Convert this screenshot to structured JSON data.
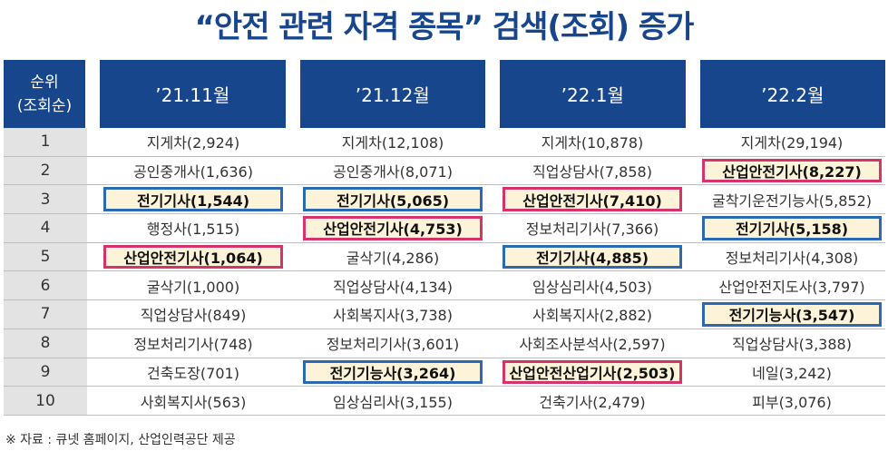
{
  "title": "“안전 관련 자격 종목” 검색(조회) 증가",
  "header": {
    "rank_line1": "순위",
    "rank_line2": "(조회순)",
    "columns": [
      "’21.11월",
      "’21.12월",
      "’22.1월",
      "’22.2월"
    ]
  },
  "colors": {
    "header_bg": "#17468c",
    "highlight_bg": "#fdf3d8",
    "pink": "#d6336c",
    "blue": "#2a6ab3"
  },
  "rows": [
    {
      "rank": "1",
      "cells": [
        {
          "text": "지게차(2,924)",
          "hl": ""
        },
        {
          "text": "지게차(12,108)",
          "hl": ""
        },
        {
          "text": "지게차(10,878)",
          "hl": ""
        },
        {
          "text": "지게차(29,194)",
          "hl": ""
        }
      ]
    },
    {
      "rank": "2",
      "cells": [
        {
          "text": "공인중개사(1,636)",
          "hl": ""
        },
        {
          "text": "공인중개사(8,071)",
          "hl": ""
        },
        {
          "text": "직업상담사(7,858)",
          "hl": ""
        },
        {
          "text": "산업안전기사(8,227)",
          "hl": "pink"
        }
      ]
    },
    {
      "rank": "3",
      "cells": [
        {
          "text": "전기기사(1,544)",
          "hl": "blue"
        },
        {
          "text": "전기기사(5,065)",
          "hl": "blue"
        },
        {
          "text": "산업안전기사(7,410)",
          "hl": "pink"
        },
        {
          "text": "굴착기운전기능사(5,852)",
          "hl": ""
        }
      ]
    },
    {
      "rank": "4",
      "cells": [
        {
          "text": "행정사(1,515)",
          "hl": ""
        },
        {
          "text": "산업안전기사(4,753)",
          "hl": "pink"
        },
        {
          "text": "정보처리기사(7,366)",
          "hl": ""
        },
        {
          "text": "전기기사(5,158)",
          "hl": "blue"
        }
      ]
    },
    {
      "rank": "5",
      "cells": [
        {
          "text": "산업안전기사(1,064)",
          "hl": "pink"
        },
        {
          "text": "굴삭기(4,286)",
          "hl": ""
        },
        {
          "text": "전기기사(4,885)",
          "hl": "blue"
        },
        {
          "text": "정보처리기사(4,308)",
          "hl": ""
        }
      ]
    },
    {
      "rank": "6",
      "cells": [
        {
          "text": "굴삭기(1,000)",
          "hl": ""
        },
        {
          "text": "직업상담사(4,134)",
          "hl": ""
        },
        {
          "text": "임상심리사(4,503)",
          "hl": ""
        },
        {
          "text": "산업안전지도사(3,797)",
          "hl": ""
        }
      ]
    },
    {
      "rank": "7",
      "cells": [
        {
          "text": "직업상담사(849)",
          "hl": ""
        },
        {
          "text": "사회복지사(3,738)",
          "hl": ""
        },
        {
          "text": "사회복지사(2,882)",
          "hl": ""
        },
        {
          "text": "전기기능사(3,547)",
          "hl": "blue"
        }
      ]
    },
    {
      "rank": "8",
      "cells": [
        {
          "text": "정보처리기사(748)",
          "hl": ""
        },
        {
          "text": "정보처리기사(3,601)",
          "hl": ""
        },
        {
          "text": "사회조사분석사(2,597)",
          "hl": ""
        },
        {
          "text": "직업상담사(3,388)",
          "hl": ""
        }
      ]
    },
    {
      "rank": "9",
      "cells": [
        {
          "text": "건축도장(701)",
          "hl": ""
        },
        {
          "text": "전기기능사(3,264)",
          "hl": "blue"
        },
        {
          "text": "산업안전산업기사(2,503)",
          "hl": "pink"
        },
        {
          "text": "네일(3,242)",
          "hl": ""
        }
      ]
    },
    {
      "rank": "10",
      "cells": [
        {
          "text": "사회복지사(563)",
          "hl": ""
        },
        {
          "text": "임상심리사(3,155)",
          "hl": ""
        },
        {
          "text": "건축기사(2,479)",
          "hl": ""
        },
        {
          "text": "피부(3,076)",
          "hl": ""
        }
      ]
    }
  ],
  "source": "※ 자료 : 큐넷 홈페이지, 산업인력공단 제공"
}
